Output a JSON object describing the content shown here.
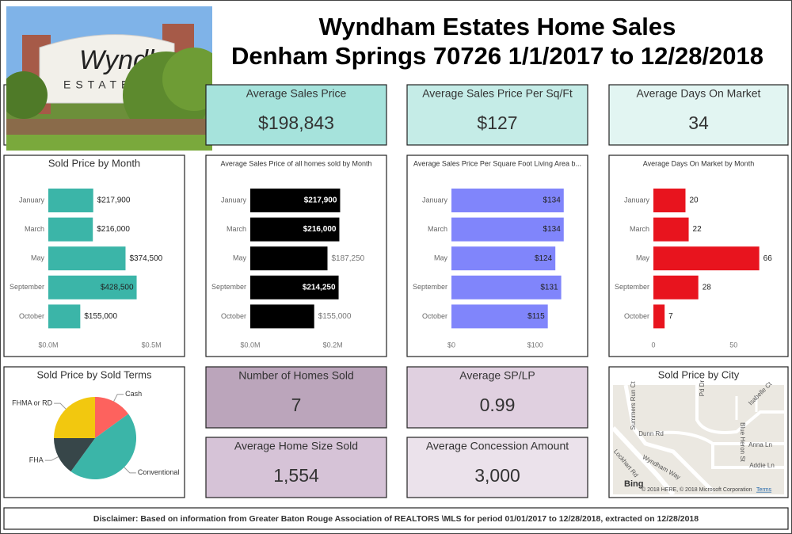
{
  "header": {
    "title_line1": "Wyndham Estates Home Sales",
    "title_line2": "Denham Springs 70726 1/1/2017 to 12/28/2018",
    "sign_text": "Wyndham",
    "sign_subtext": "ESTATES"
  },
  "kpis": [
    {
      "label": "Average Sales Price",
      "value": "$198,843"
    },
    {
      "label": "Average Sales Price Per Sq/Ft",
      "value": "$127"
    },
    {
      "label": "Average Days On Market",
      "value": "34"
    },
    {
      "label": "Number of Homes Sold",
      "value": "7"
    },
    {
      "label": "Average SP/LP",
      "value": "0.99"
    },
    {
      "label": "Average Home Size Sold",
      "value": "1,554"
    },
    {
      "label": "Average Concession Amount",
      "value": "3,000"
    }
  ],
  "chart_data": [
    {
      "type": "bar",
      "orientation": "horizontal",
      "title": "Sold Price by Month",
      "categories": [
        "January",
        "March",
        "May",
        "September",
        "October"
      ],
      "values": [
        217900,
        216000,
        374500,
        428500,
        155000
      ],
      "value_labels": [
        "$217,900",
        "$216,000",
        "$374,500",
        "$428,500",
        "$155,000"
      ],
      "color": "#3bb5a8",
      "xlim": [
        0,
        630000
      ],
      "xticks": [
        {
          "value": 0,
          "label": "$0.0M"
        },
        {
          "value": 500000,
          "label": "$0.5M"
        }
      ]
    },
    {
      "type": "bar",
      "orientation": "horizontal",
      "title": "Average Sales Price of all homes sold by Month",
      "categories": [
        "January",
        "March",
        "May",
        "September",
        "October"
      ],
      "values": [
        217900,
        216000,
        187250,
        214250,
        155000
      ],
      "value_labels": [
        "$217,900",
        "$216,000",
        "$187,250",
        "$214,250",
        "$155,000"
      ],
      "color": "#000000",
      "xlim": [
        0,
        315000
      ],
      "xticks": [
        {
          "value": 0,
          "label": "$0.0M"
        },
        {
          "value": 200000,
          "label": "$0.2M"
        }
      ]
    },
    {
      "type": "bar",
      "orientation": "horizontal",
      "title": "Average Sales Price Per Square Foot Living Area b...",
      "categories": [
        "January",
        "March",
        "May",
        "September",
        "October"
      ],
      "values": [
        134,
        134,
        124,
        131,
        115
      ],
      "value_labels": [
        "$134",
        "$134",
        "$124",
        "$131",
        "$115"
      ],
      "color": "#8085fb",
      "xlim": [
        0,
        155
      ],
      "xticks": [
        {
          "value": 0,
          "label": "$0"
        },
        {
          "value": 100,
          "label": "$100"
        }
      ]
    },
    {
      "type": "bar",
      "orientation": "horizontal",
      "title": "Average Days On Market by Month",
      "categories": [
        "January",
        "March",
        "May",
        "September",
        "October"
      ],
      "values": [
        20,
        22,
        66,
        28,
        7
      ],
      "color": "#e8141e",
      "xlim": [
        0,
        80
      ],
      "xticks": [
        0,
        50
      ]
    },
    {
      "type": "pie",
      "title": "Sold Price by Sold Terms",
      "categories": [
        "Cash",
        "Conventional",
        "FHA",
        "FHMA or RD"
      ],
      "values": [
        15,
        45,
        15,
        25
      ],
      "colors": [
        "#fd625e",
        "#3bb5a8",
        "#374649",
        "#f2c80f"
      ]
    }
  ],
  "map": {
    "title": "Sold Price by City",
    "labels": [
      "Summers Run Ct",
      "Pd Dr",
      "Isabelle Ct",
      "Dunn Rd",
      "Blue Heron St",
      "Anna Ln",
      "Lockhart Rd",
      "Wyndham Way",
      "Addie Ln"
    ],
    "logo": "Bing",
    "attribution": "© 2018 HERE, © 2018 Microsoft Corporation",
    "terms": "Terms"
  },
  "disclaimer": "Disclaimer: Based on information from Greater Baton Rouge Association of REALTORS \\MLS for period 01/01/2017 to 12/28/2018, extracted on 12/28/2018"
}
